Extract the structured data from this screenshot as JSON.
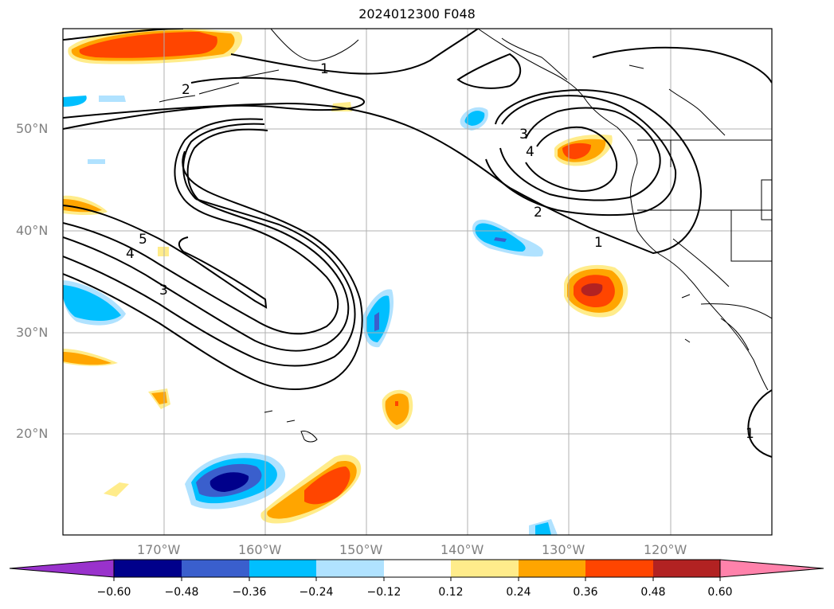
{
  "title": "2024012300 F048",
  "map": {
    "lat_ticks": [
      "50°N",
      "40°N",
      "30°N",
      "20°N"
    ],
    "lon_ticks": [
      "170°W",
      "160°W",
      "150°W",
      "140°W",
      "130°W",
      "120°W"
    ],
    "grid": true,
    "contour_color": "#000000",
    "contour_labels": [
      "5",
      "4",
      "3",
      "2",
      "1",
      "2",
      "3",
      "4",
      "1",
      "1"
    ]
  },
  "colorbar": {
    "ticks": [
      "−0.60",
      "−0.48",
      "−0.36",
      "−0.24",
      "−0.12",
      "0.12",
      "0.24",
      "0.36",
      "0.48",
      "0.60"
    ],
    "colors": [
      "#9932cc",
      "#00008b",
      "#3a5fcd",
      "#00bfff",
      "#b0e2ff",
      "#ffffff",
      "#ffec8b",
      "#ffa500",
      "#ff4500",
      "#b22222",
      "#ff82ab"
    ]
  }
}
